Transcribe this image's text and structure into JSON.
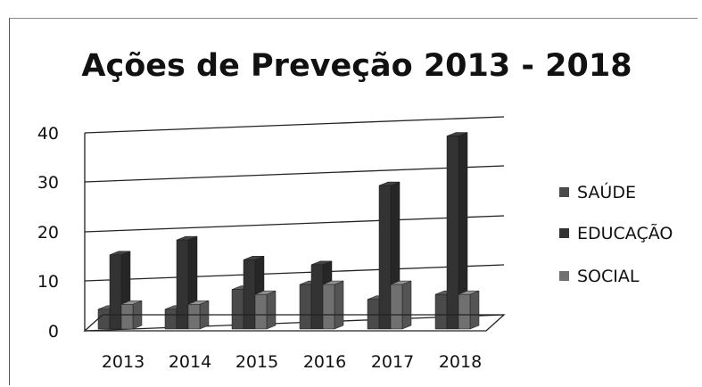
{
  "chart_data": {
    "type": "bar",
    "title": "Ações de Preveção 2013 - 2018",
    "categories": [
      "2013",
      "2014",
      "2015",
      "2016",
      "2017",
      "2018"
    ],
    "series": [
      {
        "name": "SAÚDE",
        "values": [
          4,
          4,
          8,
          9,
          6,
          7
        ],
        "color": "#4a4a4a"
      },
      {
        "name": "EDUCAÇÃO",
        "values": [
          15,
          18,
          14,
          13,
          29,
          39
        ],
        "color": "#333333"
      },
      {
        "name": "SOCIAL",
        "values": [
          5,
          5,
          7,
          9,
          9,
          7
        ],
        "color": "#707070"
      }
    ],
    "yticks": [
      "0",
      "10",
      "20",
      "30",
      "40"
    ],
    "ylim": [
      0,
      40
    ],
    "grid": true,
    "legend": "right",
    "style": "3d-clustered-column"
  }
}
